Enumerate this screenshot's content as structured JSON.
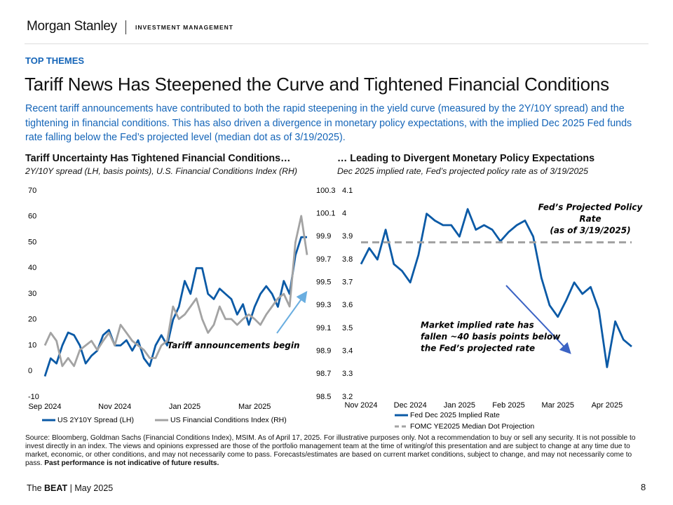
{
  "header": {
    "logo": "Morgan Stanley",
    "division": "INVESTMENT MANAGEMENT"
  },
  "section": "TOP THEMES",
  "title": "Tariff News Has Steepened the Curve and Tightened Financial Conditions",
  "intro": "Recent tariff announcements have contributed to both the rapid steepening in the yield curve (measured by the 2Y/10Y spread) and the tightening in financial conditions. This has also driven a divergence in monetary policy expectations, with the implied Dec 2025 Fed funds rate falling below the Fed’s projected level (median dot as of 3/19/2025).",
  "chart_data": [
    {
      "type": "line",
      "title": "Tariff Uncertainty Has Tightened Financial Conditions…",
      "subtitle": "2Y/10Y spread (LH, basis points), U.S. Financial Conditions Index (RH)",
      "categories": [
        "Sep 2024",
        null,
        null,
        null,
        null,
        null,
        null,
        null,
        null,
        null,
        null,
        null,
        "Nov 2024",
        null,
        null,
        null,
        null,
        null,
        null,
        null,
        null,
        null,
        null,
        null,
        "Jan 2025",
        null,
        null,
        null,
        null,
        null,
        null,
        null,
        null,
        null,
        null,
        null,
        "Mar 2025",
        null,
        null,
        null,
        null,
        null,
        null,
        null,
        null,
        null
      ],
      "series": [
        {
          "name": "US 2Y10Y Spread (LH)",
          "color": "#0b5aa6",
          "values": [
            -2,
            5,
            3,
            10,
            15,
            14,
            10,
            3,
            6,
            8,
            14,
            16,
            10,
            10,
            12,
            8,
            12,
            5,
            2,
            10,
            14,
            10,
            20,
            25,
            35,
            30,
            40,
            40,
            30,
            28,
            32,
            30,
            28,
            22,
            26,
            18,
            25,
            30,
            33,
            30,
            25,
            35,
            30,
            45,
            52,
            52
          ]
        },
        {
          "name": "US Financial Conditions Index (RH)",
          "color": "#a3a3a3",
          "axis": "y2",
          "values": [
            98.95,
            99.06,
            98.99,
            98.77,
            98.84,
            98.77,
            98.91,
            98.95,
            98.99,
            98.91,
            98.99,
            99.06,
            98.95,
            99.13,
            99.06,
            98.99,
            98.95,
            98.91,
            98.84,
            98.84,
            98.95,
            98.99,
            99.29,
            99.18,
            99.22,
            99.29,
            99.36,
            99.18,
            99.06,
            99.13,
            99.29,
            99.18,
            99.18,
            99.13,
            99.18,
            99.22,
            99.18,
            99.13,
            99.22,
            99.29,
            99.36,
            99.4,
            99.29,
            99.85,
            100.08,
            99.74
          ]
        }
      ],
      "ylim": [
        -10,
        70
      ],
      "yticks": [
        70,
        60,
        50,
        40,
        30,
        20,
        10,
        0,
        -10
      ],
      "y2lim": [
        98.5,
        100.3
      ],
      "y2ticks": [
        100.3,
        100.1,
        99.9,
        99.7,
        99.5,
        99.3,
        99.1,
        98.9,
        98.7,
        98.5
      ],
      "annotation": [
        "Tariff announcements begin"
      ],
      "annotation_color": "#29a3d6"
    },
    {
      "type": "line",
      "title": "… Leading to Divergent Monetary Policy Expectations",
      "subtitle": "Dec 2025 implied rate, Fed’s projected policy rate as of 3/19/2025",
      "categories": [
        "Nov 2024",
        null,
        null,
        null,
        null,
        null,
        "Dec 2024",
        null,
        null,
        null,
        null,
        null,
        "Jan 2025",
        null,
        null,
        null,
        null,
        null,
        "Feb 2025",
        null,
        null,
        null,
        null,
        null,
        "Mar 2025",
        null,
        null,
        null,
        null,
        null,
        "Apr 2025",
        null,
        null,
        null
      ],
      "series": [
        {
          "name": "Fed Dec 2025 Implied Rate",
          "color": "#0b5aa6",
          "values": [
            3.78,
            3.85,
            3.8,
            3.93,
            3.78,
            3.75,
            3.7,
            3.82,
            4.0,
            3.97,
            3.95,
            3.95,
            3.9,
            4.02,
            3.93,
            3.95,
            3.93,
            3.88,
            3.92,
            3.95,
            3.97,
            3.9,
            3.72,
            3.6,
            3.55,
            3.62,
            3.7,
            3.65,
            3.68,
            3.58,
            3.33,
            3.53,
            3.45,
            3.42
          ]
        },
        {
          "name": "FOMC YE2025 Median Dot Projection",
          "color": "#a3a3a3",
          "dash": true,
          "values": [
            3.875,
            3.875,
            3.875,
            3.875,
            3.875,
            3.875,
            3.875,
            3.875,
            3.875,
            3.875,
            3.875,
            3.875,
            3.875,
            3.875,
            3.875,
            3.875,
            3.875,
            3.875,
            3.875,
            3.875,
            3.875,
            3.875,
            3.875,
            3.875,
            3.875,
            3.875,
            3.875,
            3.875,
            3.875,
            3.875,
            3.875,
            3.875,
            3.875,
            3.875
          ]
        }
      ],
      "ylim": [
        3.2,
        4.1
      ],
      "yticks": [
        4.1,
        4.0,
        3.9,
        3.8,
        3.7,
        3.6,
        3.5,
        3.4,
        3.3,
        3.2
      ],
      "annotation": [
        "Fed’s Projected Policy",
        "Rate",
        "(as of 3/19/2025)"
      ],
      "annotation_color": "#a3a3a3",
      "annotation2": [
        "Market implied rate has",
        "fallen ~40 basis points below",
        "the Fed’s projected rate"
      ],
      "annotation2_color": "#3b63c4"
    }
  ],
  "source": {
    "text": "Source: Bloomberg, Goldman Sachs (Financial Conditions Index), MSIM. As of April 17, 2025. For illustrative purposes only. Not a recommendation to buy or sell any security. It is not possible to invest directly in an index. The views and opinions expressed are those of the portfolio management team at the time of writing/of this presentation and are subject to change at any time due to market, economic, or other conditions, and may not necessarily come to pass.  Forecasts/estimates are based on current market conditions, subject to change, and may not necessarily come to pass.",
    "bold": "Past performance is not indicative of future results."
  },
  "footer": {
    "prefix": "The",
    "brand": "BEAT",
    "date": "| May 2025",
    "page": 8
  }
}
